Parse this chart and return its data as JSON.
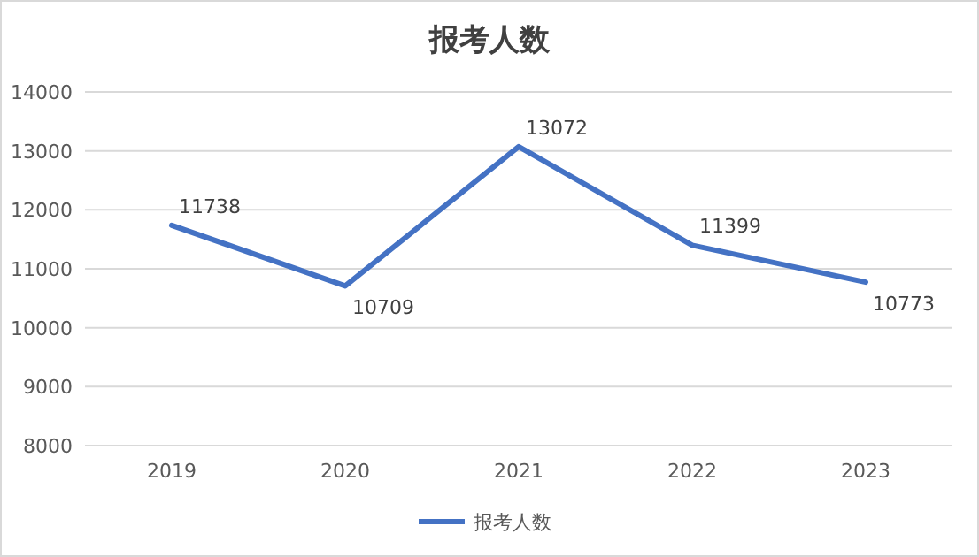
{
  "chart_data": {
    "type": "line",
    "title": "报考人数",
    "categories": [
      "2019",
      "2020",
      "2021",
      "2022",
      "2023"
    ],
    "series": [
      {
        "name": "报考人数",
        "color": "#4472c4",
        "values": [
          11738,
          10709,
          13072,
          11399,
          10773
        ]
      }
    ],
    "ylim": [
      8000,
      14000
    ],
    "yticks": [
      8000,
      9000,
      10000,
      11000,
      12000,
      13000,
      14000
    ],
    "grid": "y",
    "legend": "bottom",
    "data_labels": true,
    "marker": "none",
    "line_style": "solid"
  }
}
